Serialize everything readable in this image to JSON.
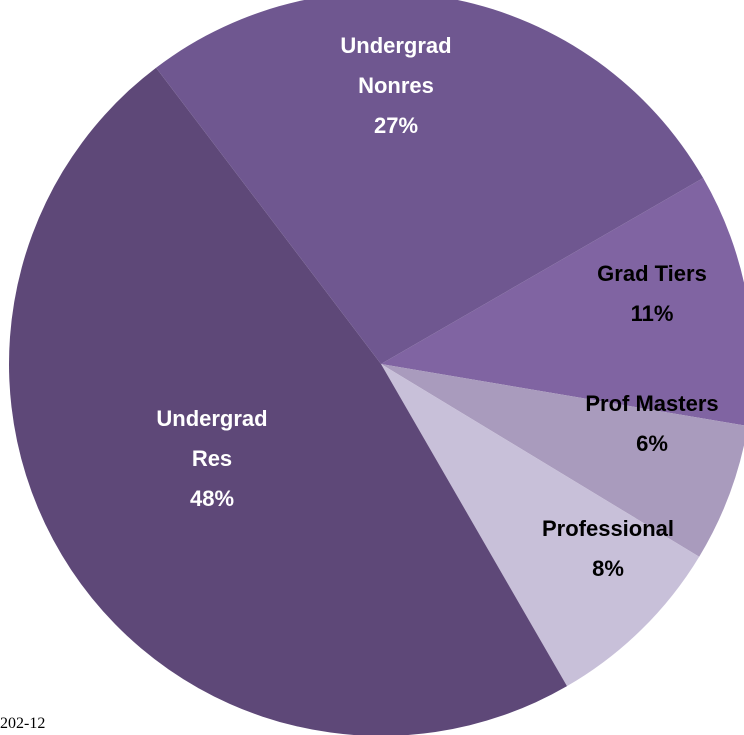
{
  "chart_data": {
    "type": "pie",
    "start_angle_deg": -30,
    "direction": "clockwise",
    "slices": [
      {
        "label_lines": [
          "Grad Tiers"
        ],
        "percent_text": "11%",
        "value": 11,
        "color": "#8064a2",
        "label_color": "#000000"
      },
      {
        "label_lines": [
          "Prof Masters"
        ],
        "percent_text": "6%",
        "value": 6,
        "color": "#a99bbd",
        "label_color": "#000000"
      },
      {
        "label_lines": [
          "Professional"
        ],
        "percent_text": "8%",
        "value": 8,
        "color": "#c8c0d9",
        "label_color": "#000000"
      },
      {
        "label_lines": [
          "Undergrad",
          "Res"
        ],
        "percent_text": "48%",
        "value": 48,
        "color": "#5e4878",
        "label_color": "#ffffff"
      },
      {
        "label_lines": [
          "Undergrad",
          "Nonres"
        ],
        "percent_text": "27%",
        "value": 27,
        "color": "#6f5790",
        "label_color": "#ffffff"
      }
    ]
  },
  "footnote": "202-12"
}
